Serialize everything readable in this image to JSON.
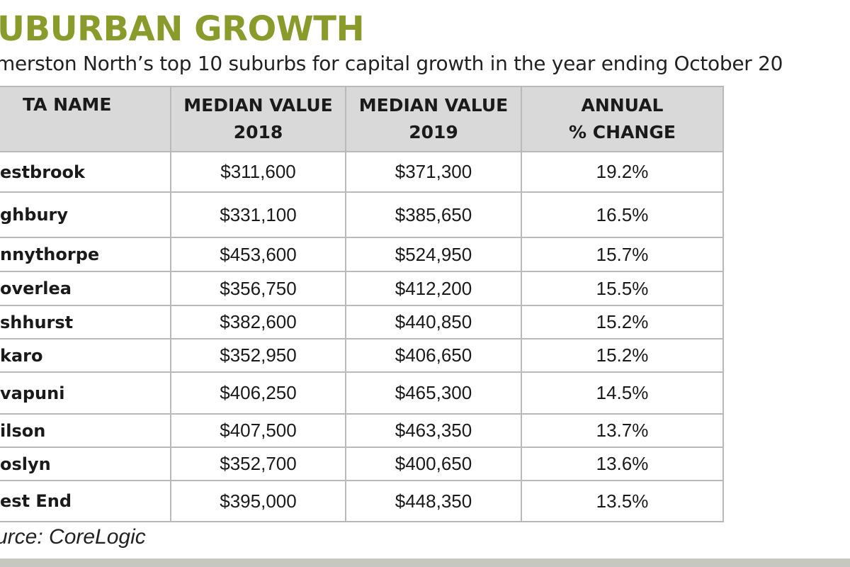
{
  "title": "UBURBAN GROWTH",
  "subtitle": "merston North’s top 10 suburbs for capital growth in the year ending October 20",
  "table": {
    "headers": [
      "TA NAME",
      "MEDIAN VALUE 2018",
      "MEDIAN VALUE 2019",
      "ANNUAL % CHANGE"
    ],
    "rows": [
      [
        "estbrook",
        "$311,600",
        "$371,300",
        "19.2%"
      ],
      [
        "ghbury",
        "$331,100",
        "$385,650",
        "16.5%"
      ],
      [
        "nnythorpe",
        "$453,600",
        "$524,950",
        "15.7%"
      ],
      [
        "overlea",
        "$356,750",
        "$412,200",
        "15.5%"
      ],
      [
        "shhurst",
        "$382,600",
        "$440,850",
        "15.2%"
      ],
      [
        "karo",
        "$352,950",
        "$406,650",
        "15.2%"
      ],
      [
        "vapuni",
        "$406,250",
        "$465,300",
        "14.5%"
      ],
      [
        "ilson",
        "$407,500",
        "$463,350",
        "13.7%"
      ],
      [
        "oslyn",
        "$352,700",
        "$400,650",
        "13.6%"
      ],
      [
        "est End",
        "$395,000",
        "$448,350",
        "13.5%"
      ]
    ]
  },
  "source": "urce: CoreLogic",
  "colors": {
    "title": "#8a9b2c",
    "header_bg": "#d9d9d9",
    "grid": "#b9b9b9",
    "bottom_bar": "#c7c7c2"
  }
}
